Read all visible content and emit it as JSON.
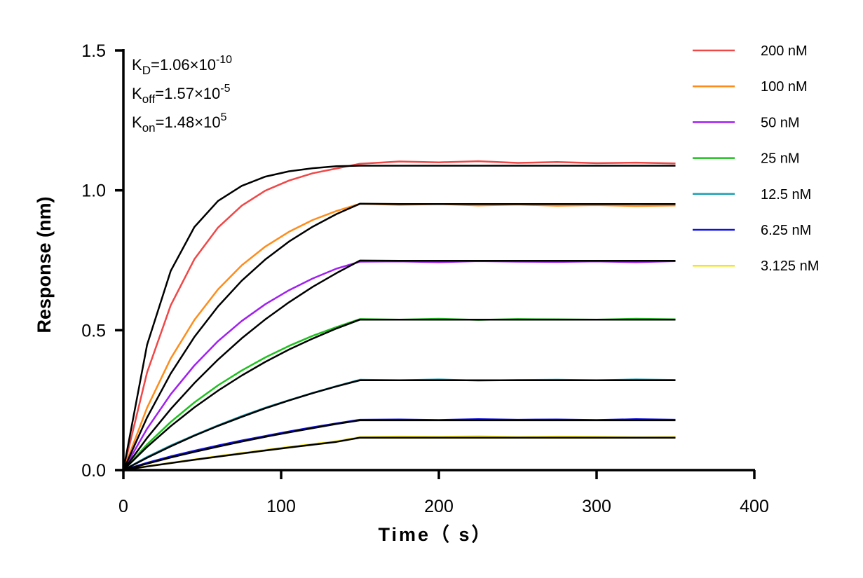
{
  "chart_data": {
    "type": "line",
    "xlabel": "Time（ s）",
    "ylabel": "Response (nm)",
    "xlim": [
      0,
      400
    ],
    "ylim": [
      0,
      1.5
    ],
    "xticks": [
      "0",
      "100",
      "200",
      "300",
      "400"
    ],
    "yticks": [
      "0.0",
      "0.5",
      "1.0",
      "1.5"
    ],
    "grid": false,
    "legend_position": "right",
    "annotations": [
      {
        "main": "K",
        "sub": "D",
        "value": "=1.06×10",
        "exp": "-10"
      },
      {
        "main": "K",
        "sub": "off",
        "value": "=1.57×10",
        "exp": "-5"
      },
      {
        "main": "K",
        "sub": "on",
        "value": "=1.48×10",
        "exp": "5"
      }
    ],
    "x": [
      0,
      15,
      30,
      45,
      60,
      75,
      90,
      105,
      120,
      135,
      150,
      175,
      200,
      225,
      250,
      275,
      300,
      325,
      350
    ],
    "fit_color": "#000000",
    "series": [
      {
        "name": "200 nM",
        "color": "#f04747",
        "values": [
          0,
          0.349,
          0.589,
          0.754,
          0.867,
          0.945,
          0.999,
          1.035,
          1.061,
          1.078,
          1.095,
          1.103,
          1.1,
          1.104,
          1.098,
          1.101,
          1.097,
          1.099,
          1.096
        ],
        "fit": [
          0,
          0.448,
          0.712,
          0.869,
          0.962,
          1.016,
          1.049,
          1.068,
          1.079,
          1.086,
          1.088,
          1.088,
          1.088,
          1.088,
          1.088,
          1.088,
          1.088,
          1.088,
          1.088
        ]
      },
      {
        "name": "100 nM",
        "color": "#ff8c1a",
        "values": [
          0,
          0.223,
          0.399,
          0.537,
          0.646,
          0.732,
          0.799,
          0.852,
          0.894,
          0.926,
          0.952,
          0.948,
          0.951,
          0.946,
          0.949,
          0.945,
          0.947,
          0.944,
          0.946
        ],
        "fit": [
          0,
          0.188,
          0.345,
          0.476,
          0.585,
          0.677,
          0.753,
          0.817,
          0.87,
          0.915,
          0.952,
          0.951,
          0.951,
          0.951,
          0.951,
          0.951,
          0.951,
          0.951,
          0.951
        ]
      },
      {
        "name": "50 nM",
        "color": "#a020f0",
        "values": [
          0,
          0.148,
          0.271,
          0.374,
          0.461,
          0.533,
          0.593,
          0.643,
          0.685,
          0.72,
          0.745,
          0.746,
          0.743,
          0.747,
          0.745,
          0.744,
          0.746,
          0.743,
          0.747
        ],
        "fit": [
          0,
          0.115,
          0.218,
          0.311,
          0.395,
          0.471,
          0.539,
          0.6,
          0.655,
          0.704,
          0.749,
          0.748,
          0.748,
          0.748,
          0.748,
          0.748,
          0.748,
          0.748,
          0.748
        ]
      },
      {
        "name": "25 nM",
        "color": "#1ec01e",
        "values": [
          0,
          0.092,
          0.172,
          0.242,
          0.303,
          0.356,
          0.403,
          0.444,
          0.48,
          0.511,
          0.54,
          0.538,
          0.541,
          0.537,
          0.54,
          0.539,
          0.538,
          0.541,
          0.539
        ],
        "fit": [
          0,
          0.083,
          0.157,
          0.224,
          0.284,
          0.338,
          0.387,
          0.431,
          0.47,
          0.506,
          0.538,
          0.538,
          0.538,
          0.538,
          0.538,
          0.538,
          0.538,
          0.538,
          0.538
        ]
      },
      {
        "name": "12.5 nM",
        "color": "#1aa0b4",
        "values": [
          0,
          0.047,
          0.088,
          0.125,
          0.16,
          0.193,
          0.223,
          0.25,
          0.276,
          0.3,
          0.323,
          0.321,
          0.324,
          0.32,
          0.322,
          0.323,
          0.321,
          0.324,
          0.322
        ],
        "fit": [
          0,
          0.044,
          0.085,
          0.123,
          0.158,
          0.19,
          0.221,
          0.249,
          0.275,
          0.299,
          0.321,
          0.321,
          0.321,
          0.321,
          0.321,
          0.321,
          0.321,
          0.321,
          0.321
        ]
      },
      {
        "name": "6.25 nM",
        "color": "#1010e0",
        "values": [
          0,
          0.026,
          0.049,
          0.069,
          0.088,
          0.106,
          0.122,
          0.138,
          0.153,
          0.167,
          0.18,
          0.181,
          0.179,
          0.182,
          0.18,
          0.181,
          0.179,
          0.182,
          0.18
        ],
        "fit": [
          0,
          0.023,
          0.045,
          0.065,
          0.084,
          0.102,
          0.119,
          0.135,
          0.15,
          0.165,
          0.178,
          0.178,
          0.178,
          0.178,
          0.178,
          0.178,
          0.178,
          0.178,
          0.178
        ]
      },
      {
        "name": "3.125 nM",
        "color": "#f5e610",
        "values": [
          0,
          0.014,
          0.026,
          0.038,
          0.05,
          0.061,
          0.072,
          0.083,
          0.093,
          0.103,
          0.118,
          0.12,
          0.119,
          0.121,
          0.118,
          0.12,
          0.119,
          0.117,
          0.118
        ],
        "fit": [
          0,
          0.013,
          0.025,
          0.037,
          0.048,
          0.059,
          0.07,
          0.081,
          0.091,
          0.101,
          0.116,
          0.116,
          0.116,
          0.116,
          0.116,
          0.116,
          0.116,
          0.116,
          0.116
        ]
      }
    ]
  }
}
